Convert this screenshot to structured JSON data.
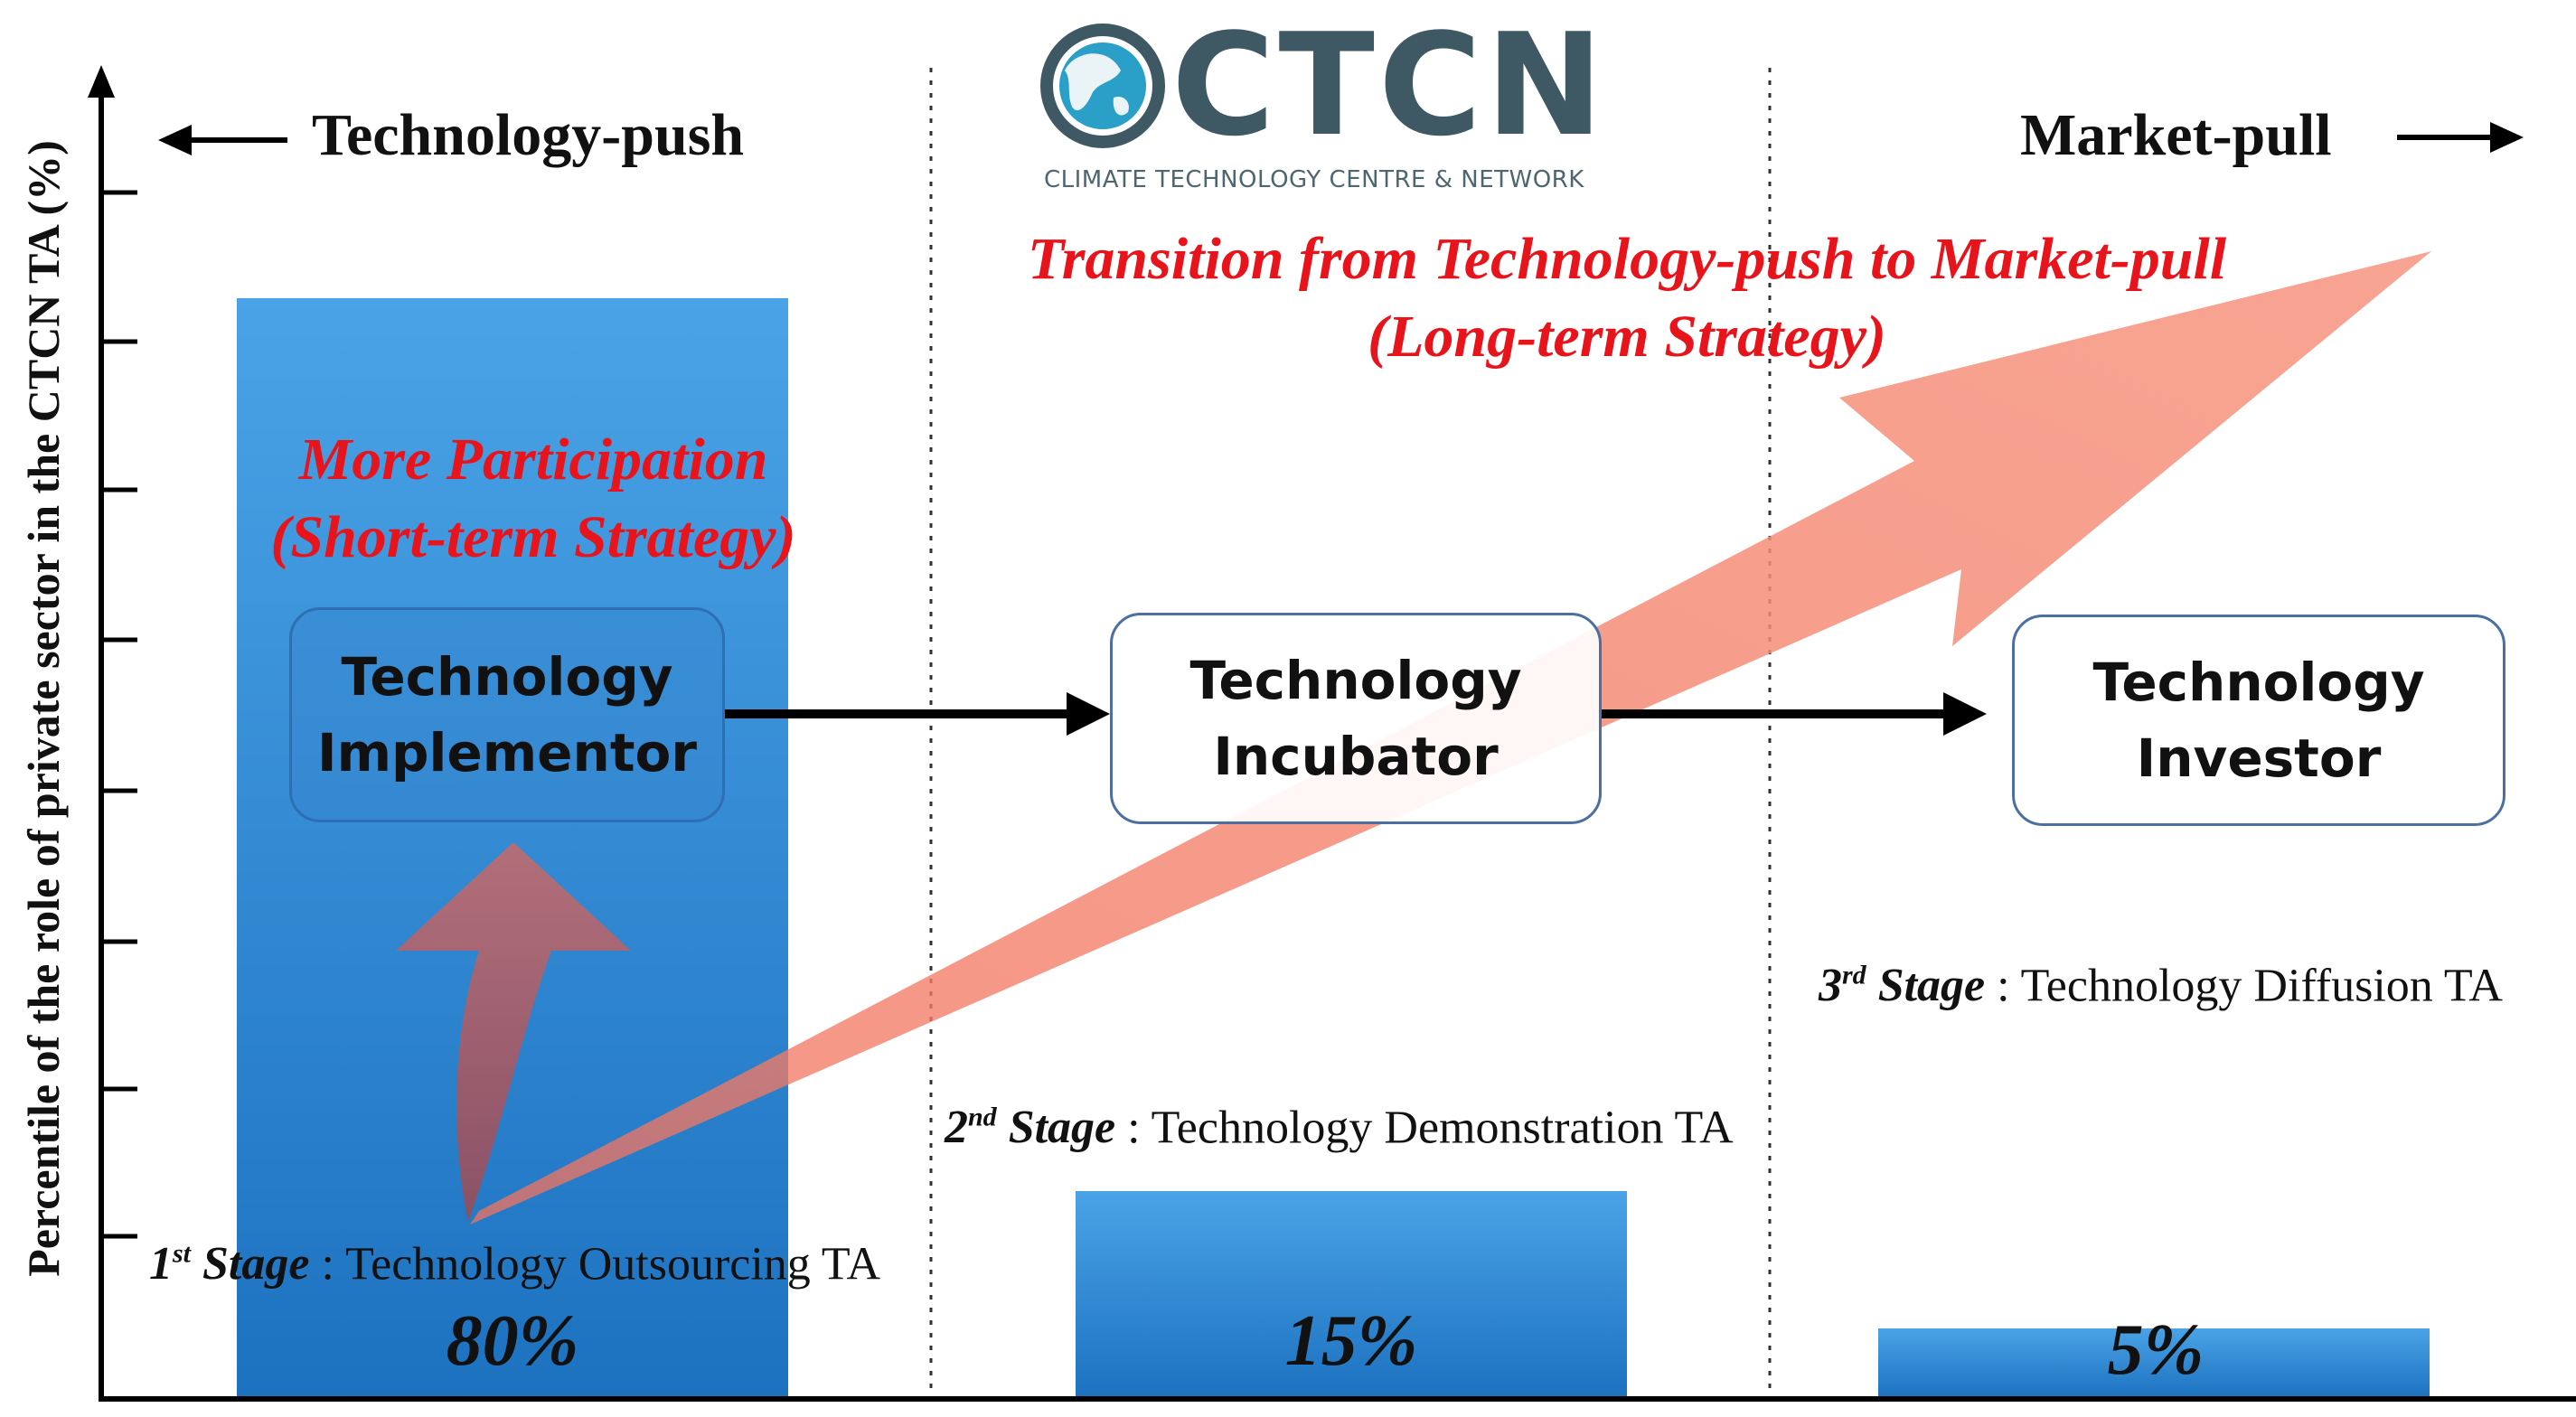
{
  "y_axis_label": "Percentile of the role of private sector in the CTCN TA (%)",
  "direction": {
    "left": "Technology-push",
    "right": "Market-pull"
  },
  "logo": {
    "name": "CTCN",
    "subtitle": "CLIMATE TECHNOLOGY CENTRE & NETWORK"
  },
  "transition": {
    "line1": "Transition from Technology-push to Market-pull",
    "line2": "(Long-term Strategy)"
  },
  "participation": {
    "line1": "More Participation",
    "line2": "(Short-term Strategy)"
  },
  "nodes": [
    {
      "line1": "Technology",
      "line2": "Implementor"
    },
    {
      "line1": "Technology",
      "line2": "Incubator"
    },
    {
      "line1": "Technology",
      "line2": "Investor"
    }
  ],
  "stages": [
    {
      "num": "1",
      "suffix": "st",
      "word": "Stage",
      "desc": ": Technology Outsourcing TA",
      "value": 80,
      "percent": "80%"
    },
    {
      "num": "2",
      "suffix": "nd",
      "word": "Stage",
      "desc": ": Technology Demonstration TA",
      "value": 15,
      "percent": "15%"
    },
    {
      "num": "3",
      "suffix": "rd",
      "word": "Stage",
      "desc": ": Technology Diffusion TA",
      "value": 5,
      "percent": "5%"
    }
  ],
  "colors": {
    "bar": "#3a8fd6",
    "bar_dark": "#1b6fbc",
    "big_arrow": "#f57a63",
    "small_arrow": "#a8545a",
    "red_text": "#e8141c"
  }
}
